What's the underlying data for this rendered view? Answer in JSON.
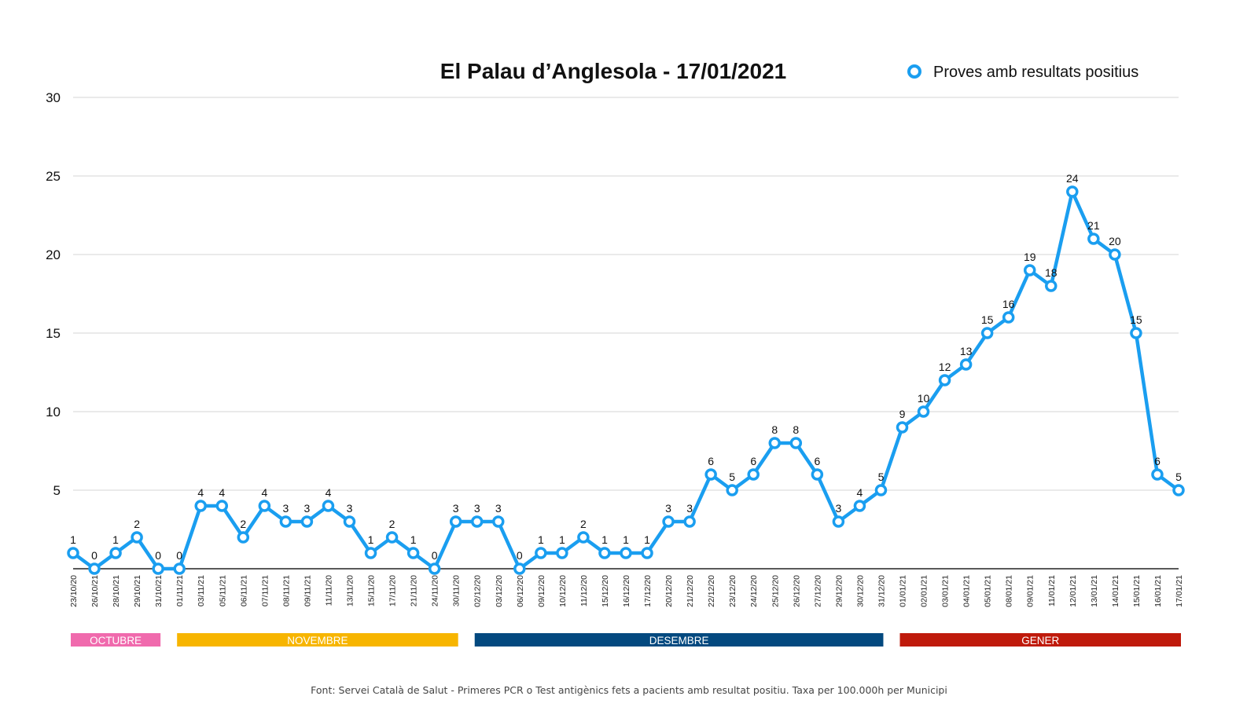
{
  "chart_data": {
    "type": "line",
    "title": "El Palau d’Anglesola - 17/01/2021",
    "ylim": [
      0,
      30
    ],
    "yticks": [
      5,
      10,
      15,
      20,
      25,
      30
    ],
    "grid": true,
    "legend": "top-right",
    "color": "#1a9ef0",
    "series": [
      {
        "name": "Proves amb resultats positius",
        "values": [
          1,
          0,
          1,
          2,
          0,
          0,
          4,
          4,
          2,
          4,
          3,
          3,
          4,
          3,
          1,
          2,
          1,
          0,
          3,
          3,
          3,
          0,
          1,
          1,
          2,
          1,
          1,
          1,
          3,
          3,
          6,
          5,
          6,
          8,
          8,
          6,
          3,
          4,
          5,
          9,
          10,
          12,
          13,
          15,
          16,
          19,
          18,
          24,
          21,
          20,
          15,
          6,
          5
        ]
      }
    ],
    "x": [
      "23/10/20",
      "26/10/21",
      "28/10/21",
      "29/10/21",
      "31/10/21",
      "01/11/21",
      "03/11/21",
      "05/11/21",
      "06/11/21",
      "07/11/21",
      "08/11/21",
      "09/11/21",
      "11/11/20",
      "13/11/20",
      "15/11/20",
      "17/11/20",
      "21/11/20",
      "24/11/20",
      "30/11/20",
      "02/12/20",
      "03/12/20",
      "06/12/20",
      "09/12/20",
      "10/12/20",
      "11/12/20",
      "15/12/20",
      "16/12/20",
      "17/12/20",
      "20/12/20",
      "21/12/20",
      "22/12/20",
      "23/12/20",
      "24/12/20",
      "25/12/20",
      "26/12/20",
      "27/12/20",
      "29/12/20",
      "30/12/20",
      "31/12/20",
      "01/01/21",
      "02/01/21",
      "03/01/21",
      "04/01/21",
      "05/01/21",
      "08/01/21",
      "09/01/21",
      "11/01/21",
      "12/01/21",
      "13/01/21",
      "14/01/21",
      "15/01/21",
      "16/01/21",
      "17/01/21"
    ],
    "months": [
      {
        "label": "OCTUBRE",
        "start": 0,
        "end": 4,
        "color": "#f06aad"
      },
      {
        "label": "NOVEMBRE",
        "start": 5,
        "end": 18,
        "color": "#f7b500"
      },
      {
        "label": "DESEMBRE",
        "start": 19,
        "end": 38,
        "color": "#03497f"
      },
      {
        "label": "GENER",
        "start": 39,
        "end": 52,
        "color": "#bf1a0b"
      }
    ]
  },
  "footer": "Font: Servei Català de Salut - Primeres PCR o Test antigènics fets a pacients amb resultat positiu. Taxa per 100.000h per Municipi"
}
